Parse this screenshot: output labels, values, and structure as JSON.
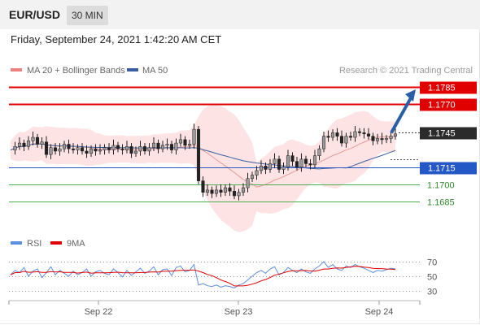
{
  "header": {
    "symbol": "EUR/USD",
    "timeframe": "30 MIN",
    "datetime": "Friday, September 24, 2021 1:42:20 AM CET"
  },
  "legend": {
    "ma20": "MA 20 + Bollinger Bands",
    "ma50": "MA 50",
    "credit": "Research © 2021 Trading Central"
  },
  "colors": {
    "resistance": "#e00000",
    "support": "#2458c6",
    "target_up": "#2a5fa8",
    "support_green": "#4caf50",
    "candle_up": "#9a9a9a",
    "candle_down": "#222222",
    "ma20": "#e89a9a",
    "ma50": "#3a5fa0",
    "bollinger_fill": "#fde0e0",
    "rsi": "#5b8de0",
    "rsi_ma": "#e00000"
  },
  "chart_data": [
    {
      "type": "candlestick",
      "x_ticks": [
        "Sep 22",
        "Sep 23",
        "Sep 24"
      ],
      "current_price": "1.1745",
      "levels": [
        {
          "label": "1.1785",
          "value": 1.1785,
          "kind": "resistance",
          "style": "box"
        },
        {
          "label": "1.1770",
          "value": 1.177,
          "kind": "resistance",
          "style": "box"
        },
        {
          "label": "1.1745",
          "value": 1.1745,
          "kind": "current",
          "style": "box"
        },
        {
          "label": "1.1715",
          "value": 1.1715,
          "kind": "support-blue",
          "style": "box"
        },
        {
          "label": "1.1700",
          "value": 1.17,
          "kind": "support",
          "style": "text"
        },
        {
          "label": "1.1685",
          "value": 1.1685,
          "kind": "support",
          "style": "text"
        }
      ],
      "price_path": [
        1.173,
        1.1733,
        1.1736,
        1.1733,
        1.1738,
        1.1741,
        1.1735,
        1.1737,
        1.1726,
        1.1732,
        1.1729,
        1.1731,
        1.1735,
        1.1731,
        1.173,
        1.1732,
        1.1729,
        1.1727,
        1.1731,
        1.1729,
        1.173,
        1.1732,
        1.173,
        1.1734,
        1.1731,
        1.173,
        1.1733,
        1.1727,
        1.1729,
        1.1733,
        1.1729,
        1.1732,
        1.1736,
        1.1731,
        1.1734,
        1.1735,
        1.173,
        1.1736,
        1.1739,
        1.1734,
        1.1735,
        1.1748,
        1.1703,
        1.1693,
        1.1695,
        1.1692,
        1.1695,
        1.1693,
        1.1697,
        1.1694,
        1.169,
        1.1693,
        1.1697,
        1.1705,
        1.1708,
        1.1712,
        1.1716,
        1.1713,
        1.1718,
        1.1722,
        1.1713,
        1.1715,
        1.1725,
        1.172,
        1.1715,
        1.1722,
        1.1718,
        1.1717,
        1.1725,
        1.1731,
        1.1742,
        1.1741,
        1.1745,
        1.1742,
        1.1736,
        1.1742,
        1.1741,
        1.1746,
        1.1745,
        1.1744,
        1.1742,
        1.1738,
        1.174,
        1.1739,
        1.174,
        1.1742,
        1.1744
      ],
      "target_arrow": {
        "from": 1.1745,
        "to": 1.1785
      }
    },
    {
      "type": "line",
      "series": [
        {
          "name": "RSI"
        },
        {
          "name": "9MA"
        }
      ],
      "y_ticks": [
        70,
        50,
        30
      ],
      "ylim": [
        20,
        80
      ],
      "rsi_path": [
        52,
        58,
        55,
        62,
        50,
        57,
        60,
        48,
        55,
        63,
        52,
        58,
        54,
        50,
        57,
        52,
        55,
        60,
        50,
        56,
        58,
        54,
        52,
        60,
        55,
        49,
        58,
        51,
        56,
        61,
        54,
        57,
        63,
        52,
        59,
        60,
        51,
        62,
        64,
        56,
        58,
        66,
        38,
        40,
        37,
        36,
        38,
        35,
        37,
        36,
        34,
        38,
        40,
        45,
        50,
        55,
        58,
        54,
        60,
        63,
        52,
        55,
        62,
        58,
        55,
        60,
        56,
        54,
        60,
        64,
        70,
        62,
        66,
        60,
        58,
        64,
        62,
        66,
        63,
        61,
        58,
        55,
        58,
        57,
        59,
        61,
        60
      ]
    }
  ]
}
